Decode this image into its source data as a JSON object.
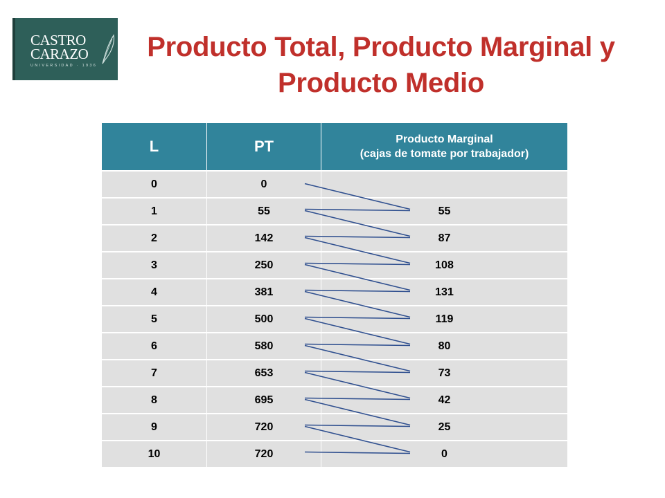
{
  "logo": {
    "line1": "CASTRO",
    "line2": "CARAZO",
    "line3": "UNIVERSIDAD · 1936"
  },
  "title": {
    "line1": "Producto Total, Producto Marginal y",
    "line2": "Producto Medio"
  },
  "table": {
    "headers": {
      "l": "L",
      "pt": "PT",
      "pm_line1": "Producto Marginal",
      "pm_line2": "(cajas de tomate por trabajador)"
    },
    "rows": [
      {
        "l": "0",
        "pt": "0",
        "pm": ""
      },
      {
        "l": "1",
        "pt": "55",
        "pm": "55"
      },
      {
        "l": "2",
        "pt": "142",
        "pm": "87"
      },
      {
        "l": "3",
        "pt": "250",
        "pm": "108"
      },
      {
        "l": "4",
        "pt": "381",
        "pm": "131"
      },
      {
        "l": "5",
        "pt": "500",
        "pm": "119"
      },
      {
        "l": "6",
        "pt": "580",
        "pm": "80"
      },
      {
        "l": "7",
        "pt": "653",
        "pm": "73"
      },
      {
        "l": "8",
        "pt": "695",
        "pm": "42"
      },
      {
        "l": "9",
        "pt": "720",
        "pm": "25"
      },
      {
        "l": "10",
        "pt": "720",
        "pm": "0"
      }
    ]
  },
  "colors": {
    "title": "#c0302b",
    "header_bg": "#31849b",
    "row_bg": "#e0e0e0",
    "connector": "#2f4f8f",
    "logo_bg": "#2e5f59"
  }
}
